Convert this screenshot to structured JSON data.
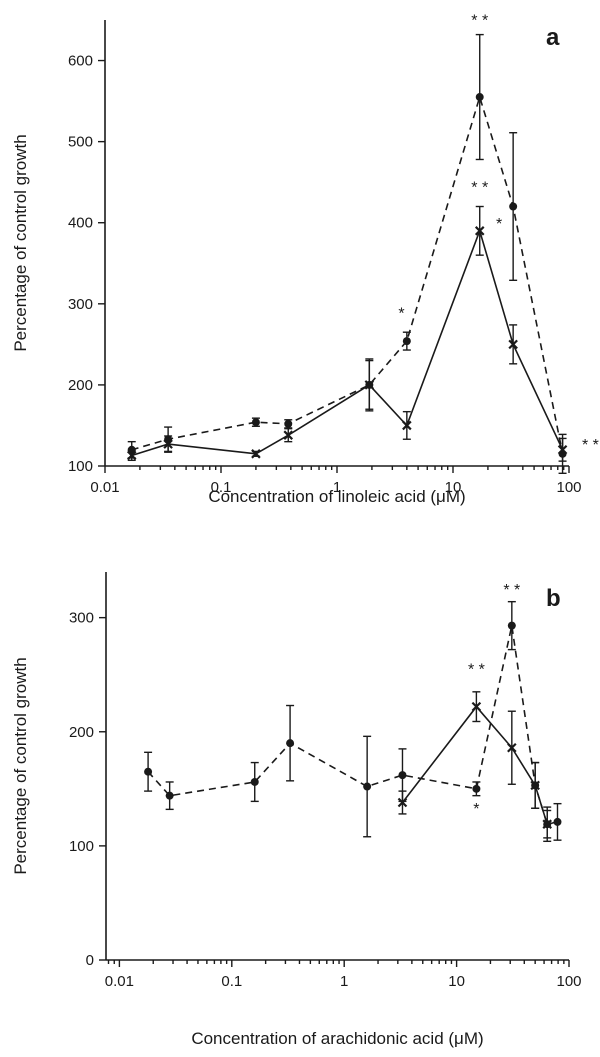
{
  "chart_data": [
    {
      "type": "line",
      "panel_label": "a",
      "xlabel": "Concentration of linoleic acid (μM)",
      "ylabel": "Percentage of control growth",
      "x_scale": "log",
      "xlim": [
        0.01,
        100
      ],
      "ylim": [
        100,
        650
      ],
      "x_ticks": [
        "0.01",
        "0.1",
        "1",
        "10",
        "100"
      ],
      "y_ticks": [
        "100",
        "200",
        "300",
        "400",
        "500",
        "600"
      ],
      "grid": false,
      "series": [
        {
          "style": "dashed",
          "marker": "dot",
          "x": [
            0.017,
            0.035,
            0.2,
            0.38,
            1.9,
            4.0,
            17.0,
            33.0,
            88.0
          ],
          "y": [
            120,
            133,
            154,
            152,
            200,
            254,
            555,
            420,
            115
          ],
          "err": [
            10,
            15,
            5,
            5,
            32,
            11,
            77,
            91,
            24
          ]
        },
        {
          "style": "solid",
          "marker": "cross",
          "x": [
            0.017,
            0.035,
            0.2,
            0.38,
            1.9,
            4.0,
            17.0,
            33.0,
            88.0
          ],
          "y": [
            113,
            127,
            115,
            138,
            200,
            150,
            390,
            250,
            120
          ],
          "err": [
            6,
            10,
            3,
            8,
            30,
            17,
            30,
            24,
            14
          ]
        }
      ],
      "annotations": [
        {
          "text": "* *",
          "x": 17.0,
          "y": 643
        },
        {
          "text": "* *",
          "x": 17.0,
          "y": 437
        },
        {
          "text": "*",
          "x": 25.0,
          "y": 392
        },
        {
          "text": "*",
          "x": 3.6,
          "y": 282
        },
        {
          "text": "* * *",
          "x": 170.0,
          "y": 120
        }
      ]
    },
    {
      "type": "line",
      "panel_label": "b",
      "xlabel": "Concentration of arachidonic acid (μM)",
      "ylabel": "Percentage of control growth",
      "x_scale": "log",
      "xlim": [
        0.0076,
        100
      ],
      "ylim": [
        0,
        340
      ],
      "x_ticks": [
        "0.01",
        "0.1",
        "1",
        "10",
        "100"
      ],
      "y_ticks": [
        "0",
        "100",
        "200",
        "300"
      ],
      "grid": false,
      "series": [
        {
          "style": "dashed",
          "marker": "dot",
          "x": [
            0.018,
            0.028,
            0.16,
            0.33,
            1.6,
            3.3,
            15.0,
            31.0,
            50.0,
            64.0,
            79.0
          ],
          "y": [
            165,
            144,
            156,
            190,
            152,
            162,
            150,
            293,
            153,
            119,
            121
          ],
          "err": [
            17,
            12,
            17,
            33,
            44,
            23,
            6,
            21,
            20,
            15,
            16
          ]
        },
        {
          "style": "solid",
          "marker": "cross",
          "x": [
            3.3,
            15.0,
            31.0,
            50.0,
            64.0
          ],
          "y": [
            138,
            222,
            186,
            153,
            119
          ],
          "err": [
            10,
            13,
            32,
            20,
            12
          ]
        }
      ],
      "annotations": [
        {
          "text": "* *",
          "x": 15.0,
          "y": 250
        },
        {
          "text": "* *",
          "x": 31.0,
          "y": 320
        },
        {
          "text": "*",
          "x": 15.0,
          "y": 128
        }
      ]
    }
  ]
}
